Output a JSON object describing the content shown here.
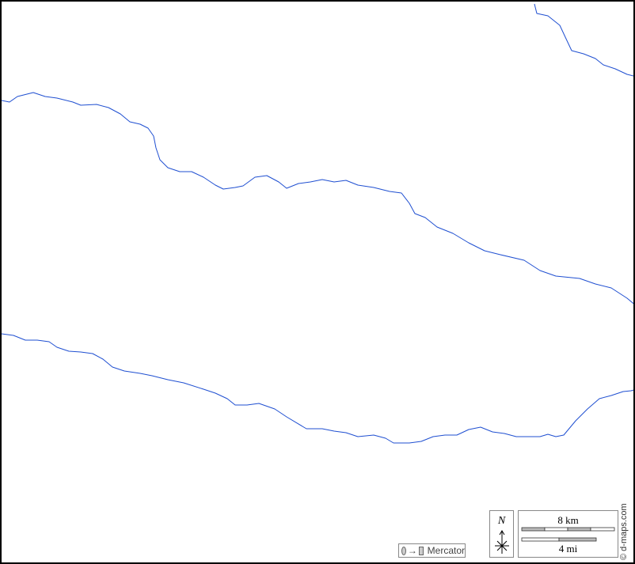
{
  "map": {
    "river_color": "#1f4fd1",
    "rivers": [
      {
        "id": "river-north",
        "path": [
          [
            673,
            3
          ],
          [
            676,
            15
          ],
          [
            690,
            18
          ],
          [
            705,
            30
          ],
          [
            712,
            45
          ],
          [
            720,
            62
          ],
          [
            735,
            66
          ],
          [
            750,
            72
          ],
          [
            760,
            80
          ],
          [
            775,
            85
          ],
          [
            790,
            92
          ],
          [
            802,
            95
          ]
        ]
      },
      {
        "id": "river-middle",
        "path": [
          [
            0,
            125
          ],
          [
            10,
            127
          ],
          [
            20,
            120
          ],
          [
            40,
            115
          ],
          [
            55,
            120
          ],
          [
            70,
            122
          ],
          [
            90,
            127
          ],
          [
            100,
            131
          ],
          [
            120,
            130
          ],
          [
            135,
            134
          ],
          [
            150,
            142
          ],
          [
            162,
            152
          ],
          [
            175,
            155
          ],
          [
            185,
            160
          ],
          [
            192,
            170
          ],
          [
            195,
            185
          ],
          [
            200,
            200
          ],
          [
            210,
            210
          ],
          [
            225,
            215
          ],
          [
            240,
            215
          ],
          [
            255,
            222
          ],
          [
            270,
            232
          ],
          [
            280,
            237
          ],
          [
            295,
            235
          ],
          [
            305,
            233
          ],
          [
            320,
            222
          ],
          [
            335,
            220
          ],
          [
            350,
            228
          ],
          [
            360,
            236
          ],
          [
            375,
            230
          ],
          [
            390,
            228
          ],
          [
            405,
            225
          ],
          [
            420,
            228
          ],
          [
            435,
            226
          ],
          [
            450,
            232
          ],
          [
            470,
            235
          ],
          [
            490,
            240
          ],
          [
            505,
            242
          ],
          [
            515,
            255
          ],
          [
            522,
            268
          ],
          [
            535,
            273
          ],
          [
            550,
            285
          ],
          [
            570,
            293
          ],
          [
            590,
            305
          ],
          [
            610,
            315
          ],
          [
            630,
            320
          ],
          [
            660,
            327
          ],
          [
            680,
            340
          ],
          [
            700,
            347
          ],
          [
            730,
            350
          ],
          [
            750,
            357
          ],
          [
            770,
            362
          ],
          [
            790,
            375
          ],
          [
            802,
            385
          ]
        ]
      },
      {
        "id": "river-south",
        "path": [
          [
            0,
            420
          ],
          [
            15,
            422
          ],
          [
            30,
            428
          ],
          [
            45,
            428
          ],
          [
            60,
            430
          ],
          [
            70,
            437
          ],
          [
            85,
            442
          ],
          [
            100,
            443
          ],
          [
            115,
            445
          ],
          [
            128,
            452
          ],
          [
            140,
            462
          ],
          [
            155,
            467
          ],
          [
            175,
            470
          ],
          [
            190,
            473
          ],
          [
            210,
            478
          ],
          [
            230,
            482
          ],
          [
            255,
            490
          ],
          [
            270,
            495
          ],
          [
            285,
            502
          ],
          [
            295,
            510
          ],
          [
            310,
            510
          ],
          [
            325,
            508
          ],
          [
            345,
            515
          ],
          [
            360,
            525
          ],
          [
            385,
            540
          ],
          [
            405,
            540
          ],
          [
            420,
            543
          ],
          [
            435,
            545
          ],
          [
            450,
            550
          ],
          [
            470,
            548
          ],
          [
            485,
            552
          ],
          [
            495,
            558
          ],
          [
            515,
            558
          ],
          [
            530,
            556
          ],
          [
            545,
            550
          ],
          [
            560,
            548
          ],
          [
            575,
            548
          ],
          [
            590,
            541
          ],
          [
            605,
            538
          ],
          [
            620,
            544
          ],
          [
            635,
            546
          ],
          [
            650,
            550
          ],
          [
            665,
            550
          ],
          [
            680,
            550
          ],
          [
            690,
            547
          ],
          [
            700,
            550
          ],
          [
            710,
            548
          ],
          [
            725,
            530
          ],
          [
            740,
            515
          ],
          [
            755,
            502
          ],
          [
            770,
            498
          ],
          [
            785,
            493
          ],
          [
            795,
            492
          ],
          [
            802,
            490
          ]
        ]
      }
    ]
  },
  "legend": {
    "projection": "Mercator",
    "north_label": "N",
    "scale_km": "8 km",
    "scale_mi": "4 mi",
    "credit": "© d-maps.com"
  }
}
